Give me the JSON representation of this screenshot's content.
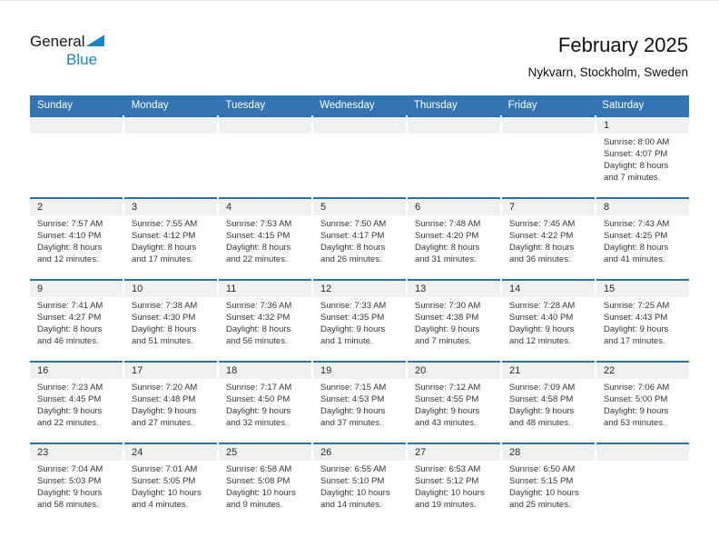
{
  "logo": {
    "part1": "General",
    "part2": "Blue",
    "triangle_icon": "blue-right-triangle"
  },
  "header": {
    "title": "February 2025",
    "subtitle": "Nykvarn, Stockholm, Sweden"
  },
  "weekdays": [
    "Sunday",
    "Monday",
    "Tuesday",
    "Wednesday",
    "Thursday",
    "Friday",
    "Saturday"
  ],
  "colors": {
    "header_bg": "#3375b4",
    "row_border": "#2e70ad",
    "day_band_bg": "#f1f1f1",
    "logo_blue": "#1a86c8"
  },
  "weeks": [
    [
      {
        "day": ""
      },
      {
        "day": ""
      },
      {
        "day": ""
      },
      {
        "day": ""
      },
      {
        "day": ""
      },
      {
        "day": ""
      },
      {
        "day": "1",
        "sunrise": "Sunrise: 8:00 AM",
        "sunset": "Sunset: 4:07 PM",
        "daylight": "Daylight: 8 hours and 7 minutes."
      }
    ],
    [
      {
        "day": "2",
        "sunrise": "Sunrise: 7:57 AM",
        "sunset": "Sunset: 4:10 PM",
        "daylight": "Daylight: 8 hours and 12 minutes."
      },
      {
        "day": "3",
        "sunrise": "Sunrise: 7:55 AM",
        "sunset": "Sunset: 4:12 PM",
        "daylight": "Daylight: 8 hours and 17 minutes."
      },
      {
        "day": "4",
        "sunrise": "Sunrise: 7:53 AM",
        "sunset": "Sunset: 4:15 PM",
        "daylight": "Daylight: 8 hours and 22 minutes."
      },
      {
        "day": "5",
        "sunrise": "Sunrise: 7:50 AM",
        "sunset": "Sunset: 4:17 PM",
        "daylight": "Daylight: 8 hours and 26 minutes."
      },
      {
        "day": "6",
        "sunrise": "Sunrise: 7:48 AM",
        "sunset": "Sunset: 4:20 PM",
        "daylight": "Daylight: 8 hours and 31 minutes."
      },
      {
        "day": "7",
        "sunrise": "Sunrise: 7:45 AM",
        "sunset": "Sunset: 4:22 PM",
        "daylight": "Daylight: 8 hours and 36 minutes."
      },
      {
        "day": "8",
        "sunrise": "Sunrise: 7:43 AM",
        "sunset": "Sunset: 4:25 PM",
        "daylight": "Daylight: 8 hours and 41 minutes."
      }
    ],
    [
      {
        "day": "9",
        "sunrise": "Sunrise: 7:41 AM",
        "sunset": "Sunset: 4:27 PM",
        "daylight": "Daylight: 8 hours and 46 minutes."
      },
      {
        "day": "10",
        "sunrise": "Sunrise: 7:38 AM",
        "sunset": "Sunset: 4:30 PM",
        "daylight": "Daylight: 8 hours and 51 minutes."
      },
      {
        "day": "11",
        "sunrise": "Sunrise: 7:36 AM",
        "sunset": "Sunset: 4:32 PM",
        "daylight": "Daylight: 8 hours and 56 minutes."
      },
      {
        "day": "12",
        "sunrise": "Sunrise: 7:33 AM",
        "sunset": "Sunset: 4:35 PM",
        "daylight": "Daylight: 9 hours and 1 minute."
      },
      {
        "day": "13",
        "sunrise": "Sunrise: 7:30 AM",
        "sunset": "Sunset: 4:38 PM",
        "daylight": "Daylight: 9 hours and 7 minutes."
      },
      {
        "day": "14",
        "sunrise": "Sunrise: 7:28 AM",
        "sunset": "Sunset: 4:40 PM",
        "daylight": "Daylight: 9 hours and 12 minutes."
      },
      {
        "day": "15",
        "sunrise": "Sunrise: 7:25 AM",
        "sunset": "Sunset: 4:43 PM",
        "daylight": "Daylight: 9 hours and 17 minutes."
      }
    ],
    [
      {
        "day": "16",
        "sunrise": "Sunrise: 7:23 AM",
        "sunset": "Sunset: 4:45 PM",
        "daylight": "Daylight: 9 hours and 22 minutes."
      },
      {
        "day": "17",
        "sunrise": "Sunrise: 7:20 AM",
        "sunset": "Sunset: 4:48 PM",
        "daylight": "Daylight: 9 hours and 27 minutes."
      },
      {
        "day": "18",
        "sunrise": "Sunrise: 7:17 AM",
        "sunset": "Sunset: 4:50 PM",
        "daylight": "Daylight: 9 hours and 32 minutes."
      },
      {
        "day": "19",
        "sunrise": "Sunrise: 7:15 AM",
        "sunset": "Sunset: 4:53 PM",
        "daylight": "Daylight: 9 hours and 37 minutes."
      },
      {
        "day": "20",
        "sunrise": "Sunrise: 7:12 AM",
        "sunset": "Sunset: 4:55 PM",
        "daylight": "Daylight: 9 hours and 43 minutes."
      },
      {
        "day": "21",
        "sunrise": "Sunrise: 7:09 AM",
        "sunset": "Sunset: 4:58 PM",
        "daylight": "Daylight: 9 hours and 48 minutes."
      },
      {
        "day": "22",
        "sunrise": "Sunrise: 7:06 AM",
        "sunset": "Sunset: 5:00 PM",
        "daylight": "Daylight: 9 hours and 53 minutes."
      }
    ],
    [
      {
        "day": "23",
        "sunrise": "Sunrise: 7:04 AM",
        "sunset": "Sunset: 5:03 PM",
        "daylight": "Daylight: 9 hours and 58 minutes."
      },
      {
        "day": "24",
        "sunrise": "Sunrise: 7:01 AM",
        "sunset": "Sunset: 5:05 PM",
        "daylight": "Daylight: 10 hours and 4 minutes."
      },
      {
        "day": "25",
        "sunrise": "Sunrise: 6:58 AM",
        "sunset": "Sunset: 5:08 PM",
        "daylight": "Daylight: 10 hours and 9 minutes."
      },
      {
        "day": "26",
        "sunrise": "Sunrise: 6:55 AM",
        "sunset": "Sunset: 5:10 PM",
        "daylight": "Daylight: 10 hours and 14 minutes."
      },
      {
        "day": "27",
        "sunrise": "Sunrise: 6:53 AM",
        "sunset": "Sunset: 5:12 PM",
        "daylight": "Daylight: 10 hours and 19 minutes."
      },
      {
        "day": "28",
        "sunrise": "Sunrise: 6:50 AM",
        "sunset": "Sunset: 5:15 PM",
        "daylight": "Daylight: 10 hours and 25 minutes."
      },
      {
        "day": ""
      }
    ]
  ]
}
